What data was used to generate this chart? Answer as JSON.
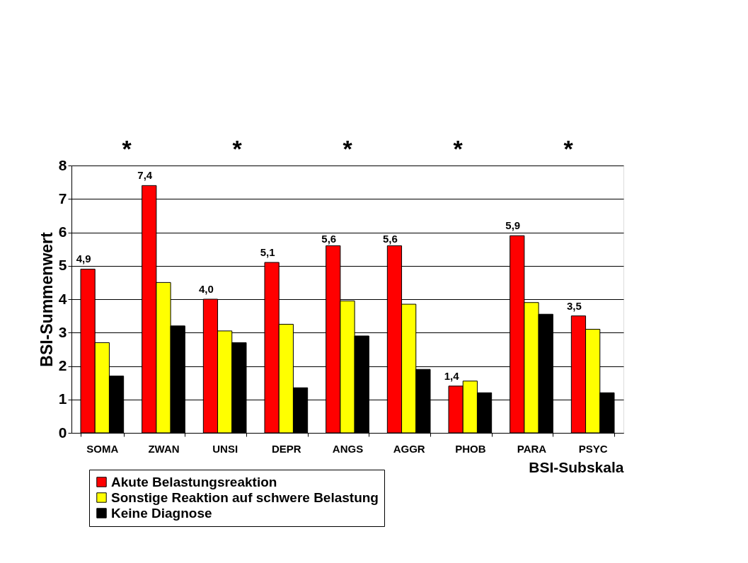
{
  "chart_data": {
    "type": "bar",
    "xlabel": "BSI-Subskala",
    "ylabel": "BSI-Summenwert",
    "categories": [
      "SOMA",
      "ZWAN",
      "UNSI",
      "DEPR",
      "ANGS",
      "AGGR",
      "PHOB",
      "PARA",
      "PSYC"
    ],
    "series": [
      {
        "name": "Akute Belastungsreaktion",
        "color": "#ff0000",
        "values": [
          4.9,
          7.4,
          4.0,
          5.1,
          5.6,
          5.6,
          1.4,
          5.9,
          3.5
        ],
        "value_labels": [
          "4,9",
          "7,4",
          "4,0",
          "5,1",
          "5,6",
          "5,6",
          "1,4",
          "5,9",
          "3,5"
        ]
      },
      {
        "name": "Sonstige Reaktion auf schwere Belastung",
        "color": "#ffff00",
        "values": [
          2.7,
          4.5,
          3.05,
          3.25,
          3.95,
          3.85,
          1.55,
          3.9,
          3.1
        ]
      },
      {
        "name": "Keine Diagnose",
        "color": "#000000",
        "values": [
          1.7,
          3.2,
          2.7,
          1.35,
          2.9,
          1.9,
          1.2,
          3.55,
          1.2
        ]
      }
    ],
    "ylim": [
      0,
      8
    ],
    "yticks": [
      0,
      1,
      2,
      3,
      4,
      5,
      6,
      7,
      8
    ],
    "grid": "y",
    "legend": "bottom",
    "annotations": [
      "*",
      "*",
      "*",
      "*",
      "*"
    ]
  }
}
